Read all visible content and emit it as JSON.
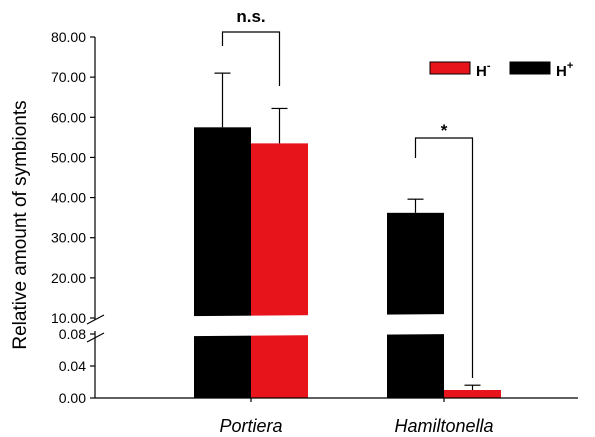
{
  "chart_data": {
    "type": "bar",
    "ylabel": "Relative amount of symbionts",
    "categories": [
      "Portiera",
      "Hamiltonella"
    ],
    "series": [
      {
        "name": "H+",
        "color": "#000000",
        "values": [
          57.5,
          36.2
        ],
        "errors": [
          13.5,
          3.4
        ]
      },
      {
        "name": "H-",
        "color": "#e8141b",
        "values": [
          53.5,
          0.01
        ],
        "errors": [
          8.7,
          0.006
        ]
      }
    ],
    "y_axis": {
      "broken": true,
      "lower_segment": {
        "range": [
          0,
          0.08
        ],
        "tick_values": [
          0,
          0.04,
          0.08
        ],
        "tick_labels": [
          "0.00",
          "0.04",
          "0.08"
        ]
      },
      "upper_segment": {
        "range": [
          10,
          80
        ],
        "tick_values": [
          10,
          20,
          30,
          40,
          50,
          60,
          70,
          80
        ],
        "tick_labels": [
          "10.00",
          "20.00",
          "30.00",
          "40.00",
          "50.00",
          "60.00",
          "70.00",
          "80.00"
        ]
      }
    },
    "legend": {
      "placement": "top-right",
      "entries": [
        {
          "base": "H",
          "sup": "-",
          "color": "#e8141b"
        },
        {
          "base": "H",
          "sup": "+",
          "color": "#000000"
        }
      ]
    },
    "annotations": [
      {
        "label": "n.s.",
        "category": "Portiera"
      },
      {
        "label": "*",
        "category": "Hamiltonella"
      }
    ]
  }
}
